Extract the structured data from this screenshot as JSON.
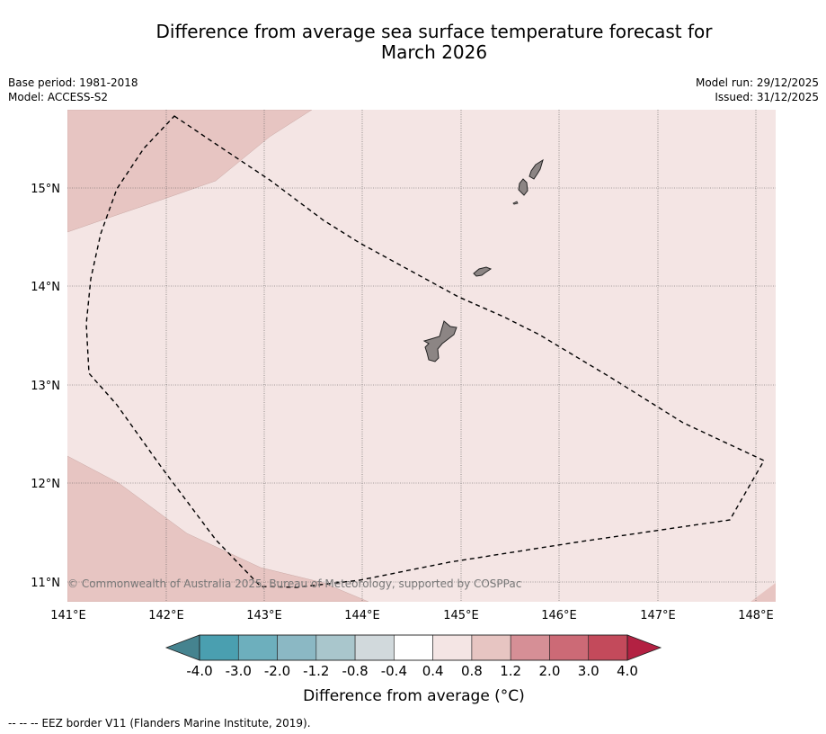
{
  "title": {
    "line1": "Difference from average sea surface temperature forecast for",
    "line2": "March 2026"
  },
  "meta": {
    "base_period": "Base period: 1981-2018",
    "model": "Model: ACCESS-S2",
    "model_run": "Model run: 29/12/2025",
    "issued": "Issued: 31/12/2025"
  },
  "map": {
    "lat_labels": [
      "15°N",
      "14°N",
      "13°N",
      "12°N",
      "11°N"
    ],
    "lon_labels": [
      "141°E",
      "142°E",
      "143°E",
      "144°E",
      "145°E",
      "146°E",
      "147°E",
      "148°E"
    ],
    "copyright": "© Commonwealth of Australia 2025, Bureau of Meteorology, supported by COSPPac",
    "region_anomaly_range_degC": [
      "0.4 to 0.8",
      "0.8 to 1.2"
    ],
    "colors": {
      "anom_0_4_0_8": "#f4e5e4",
      "anom_0_8_1_2": "#e7c5c2",
      "land": "#8c8584"
    }
  },
  "colorbar": {
    "tick_labels": [
      "-4.0",
      "-3.0",
      "-2.0",
      "-1.2",
      "-0.8",
      "-0.4",
      "0.4",
      "0.8",
      "1.2",
      "2.0",
      "3.0",
      "4.0"
    ],
    "title": "Difference from average (°C)",
    "colors": [
      "#4a9fb0",
      "#6dafbd",
      "#8bb8c4",
      "#a9c6cc",
      "#d1d9dc",
      "#ffffff",
      "#f4e5e4",
      "#e7c5c2",
      "#d68f96",
      "#cc6a76",
      "#c34a5b"
    ],
    "extend_low": "#45838f",
    "extend_high": "#b32142"
  },
  "footer": {
    "dash": "--  --  --",
    "text": "EEZ border V11 (Flanders Marine Institute, 2019)."
  }
}
